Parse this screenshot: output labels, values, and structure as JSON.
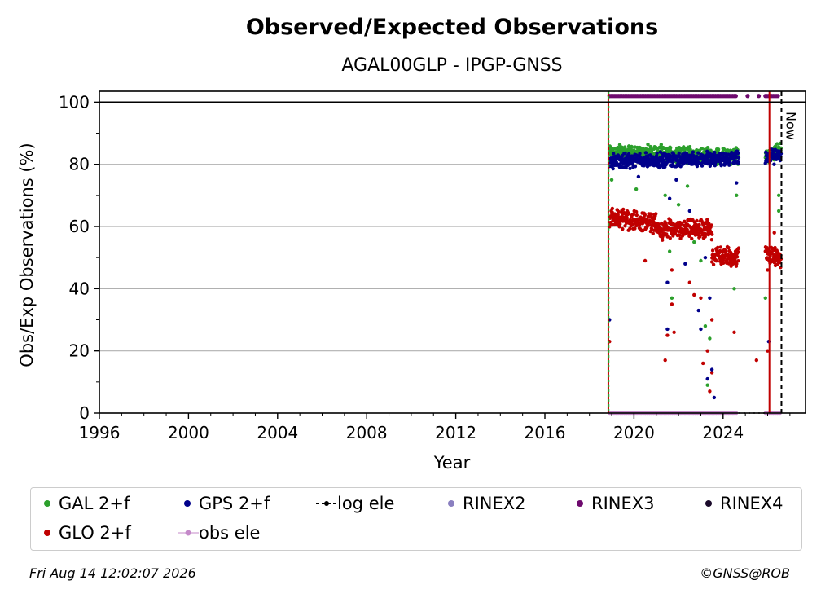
{
  "chart_data": {
    "type": "scatter",
    "title": "Observed/Expected Observations",
    "subtitle": "AGAL00GLP - IPGP-GNSS",
    "xlabel": "Year",
    "ylabel": "Obs/Exp Observations (%)",
    "xlim": [
      1996,
      2027.7
    ],
    "ylim": [
      0,
      103.5
    ],
    "x_ticks": [
      1996,
      2000,
      2004,
      2008,
      2012,
      2016,
      2020,
      2024
    ],
    "y_ticks": [
      0,
      20,
      40,
      60,
      80,
      100
    ],
    "grid": "horizontal",
    "legend_position": "bottom",
    "now_label": "Now",
    "now_year": 2026.62,
    "vlines": [
      {
        "x": 2018.85,
        "color": "#c00000"
      },
      {
        "x": 2018.86,
        "color": "#2ca02c",
        "style": "dotted"
      },
      {
        "x": 2026.08,
        "color": "#c00000"
      }
    ],
    "series": [
      {
        "name": "GAL 2+f",
        "color": "#2ca02c",
        "segments": [
          {
            "x_start": 2018.9,
            "x_end": 2024.7,
            "y_start": 84,
            "y_end": 82.5
          },
          {
            "x_start": 2025.9,
            "x_end": 2026.6,
            "y_start": 83,
            "y_end": 84.5
          }
        ],
        "outliers": [
          [
            2019.0,
            75
          ],
          [
            2020.1,
            72
          ],
          [
            2021.4,
            70
          ],
          [
            2021.6,
            52
          ],
          [
            2021.7,
            37
          ],
          [
            2022.0,
            67
          ],
          [
            2022.4,
            73
          ],
          [
            2022.7,
            55
          ],
          [
            2023.0,
            49
          ],
          [
            2023.2,
            28
          ],
          [
            2023.3,
            9
          ],
          [
            2023.4,
            24
          ],
          [
            2024.5,
            40
          ],
          [
            2024.6,
            70
          ],
          [
            2025.9,
            37
          ],
          [
            2026.5,
            70
          ],
          [
            2026.5,
            65
          ]
        ]
      },
      {
        "name": "GPS 2+f",
        "color": "#00008b",
        "segments": [
          {
            "x_start": 2018.9,
            "x_end": 2024.7,
            "y_start": 81,
            "y_end": 82
          },
          {
            "x_start": 2025.9,
            "x_end": 2026.6,
            "y_start": 82,
            "y_end": 83
          }
        ],
        "outliers": [
          [
            2018.9,
            30
          ],
          [
            2020.2,
            76
          ],
          [
            2021.5,
            42
          ],
          [
            2021.5,
            27
          ],
          [
            2021.6,
            69
          ],
          [
            2021.9,
            75
          ],
          [
            2022.3,
            48
          ],
          [
            2022.5,
            65
          ],
          [
            2022.9,
            33
          ],
          [
            2023.0,
            27
          ],
          [
            2023.2,
            50
          ],
          [
            2023.3,
            11
          ],
          [
            2023.4,
            37
          ],
          [
            2023.5,
            14
          ],
          [
            2023.6,
            5
          ],
          [
            2024.6,
            74
          ],
          [
            2026.05,
            23
          ]
        ]
      },
      {
        "name": "GLO 2+f",
        "color": "#c00000",
        "segments": [
          {
            "x_start": 2018.9,
            "x_end": 2021.0,
            "y_start": 63,
            "y_end": 61
          },
          {
            "x_start": 2021.0,
            "x_end": 2023.5,
            "y_start": 59,
            "y_end": 59
          },
          {
            "x_start": 2023.5,
            "x_end": 2024.7,
            "y_start": 51,
            "y_end": 50
          },
          {
            "x_start": 2025.9,
            "x_end": 2026.6,
            "y_start": 52,
            "y_end": 49
          }
        ],
        "outliers": [
          [
            2018.9,
            23
          ],
          [
            2020.5,
            49
          ],
          [
            2021.4,
            17
          ],
          [
            2021.5,
            25
          ],
          [
            2021.7,
            46
          ],
          [
            2021.7,
            35
          ],
          [
            2021.8,
            26
          ],
          [
            2022.5,
            42
          ],
          [
            2022.7,
            38
          ],
          [
            2023.0,
            37
          ],
          [
            2023.1,
            16
          ],
          [
            2023.3,
            20
          ],
          [
            2023.4,
            7
          ],
          [
            2023.5,
            13
          ],
          [
            2023.5,
            30
          ],
          [
            2024.5,
            26
          ],
          [
            2025.5,
            17
          ],
          [
            2026.0,
            20
          ],
          [
            2026.0,
            46
          ],
          [
            2026.3,
            58
          ]
        ]
      },
      {
        "name": "obs ele",
        "color": "#c489c9",
        "segments": [
          {
            "x_start": 2018.9,
            "x_end": 2024.6,
            "y_start": 0,
            "y_end": 0
          },
          {
            "x_start": 2025.9,
            "x_end": 2026.6,
            "y_start": 0,
            "y_end": 0
          }
        ]
      },
      {
        "name": "log ele",
        "color": "#000000"
      },
      {
        "name": "RINEX2",
        "color": "#8a7fc0"
      },
      {
        "name": "RINEX3",
        "color": "#6e0a6e",
        "segments": [
          {
            "x_start": 2018.9,
            "x_end": 2024.6,
            "y_start": 102,
            "y_end": 102
          },
          {
            "x_start": 2025.9,
            "x_end": 2026.5,
            "y_start": 102,
            "y_end": 102
          }
        ]
      },
      {
        "name": "RINEX4",
        "color": "#1a0a2a"
      }
    ]
  },
  "legend": {
    "gal": "GAL 2+f",
    "gps": "GPS 2+f",
    "log_ele": "log ele",
    "rinex2": "RINEX2",
    "rinex3": "RINEX3",
    "rinex4": "RINEX4",
    "glo": "GLO 2+f",
    "obs_ele": "obs ele"
  },
  "footer": {
    "timestamp": "Fri Aug 14 12:02:07 2026",
    "credit": "©GNSS@ROB"
  }
}
